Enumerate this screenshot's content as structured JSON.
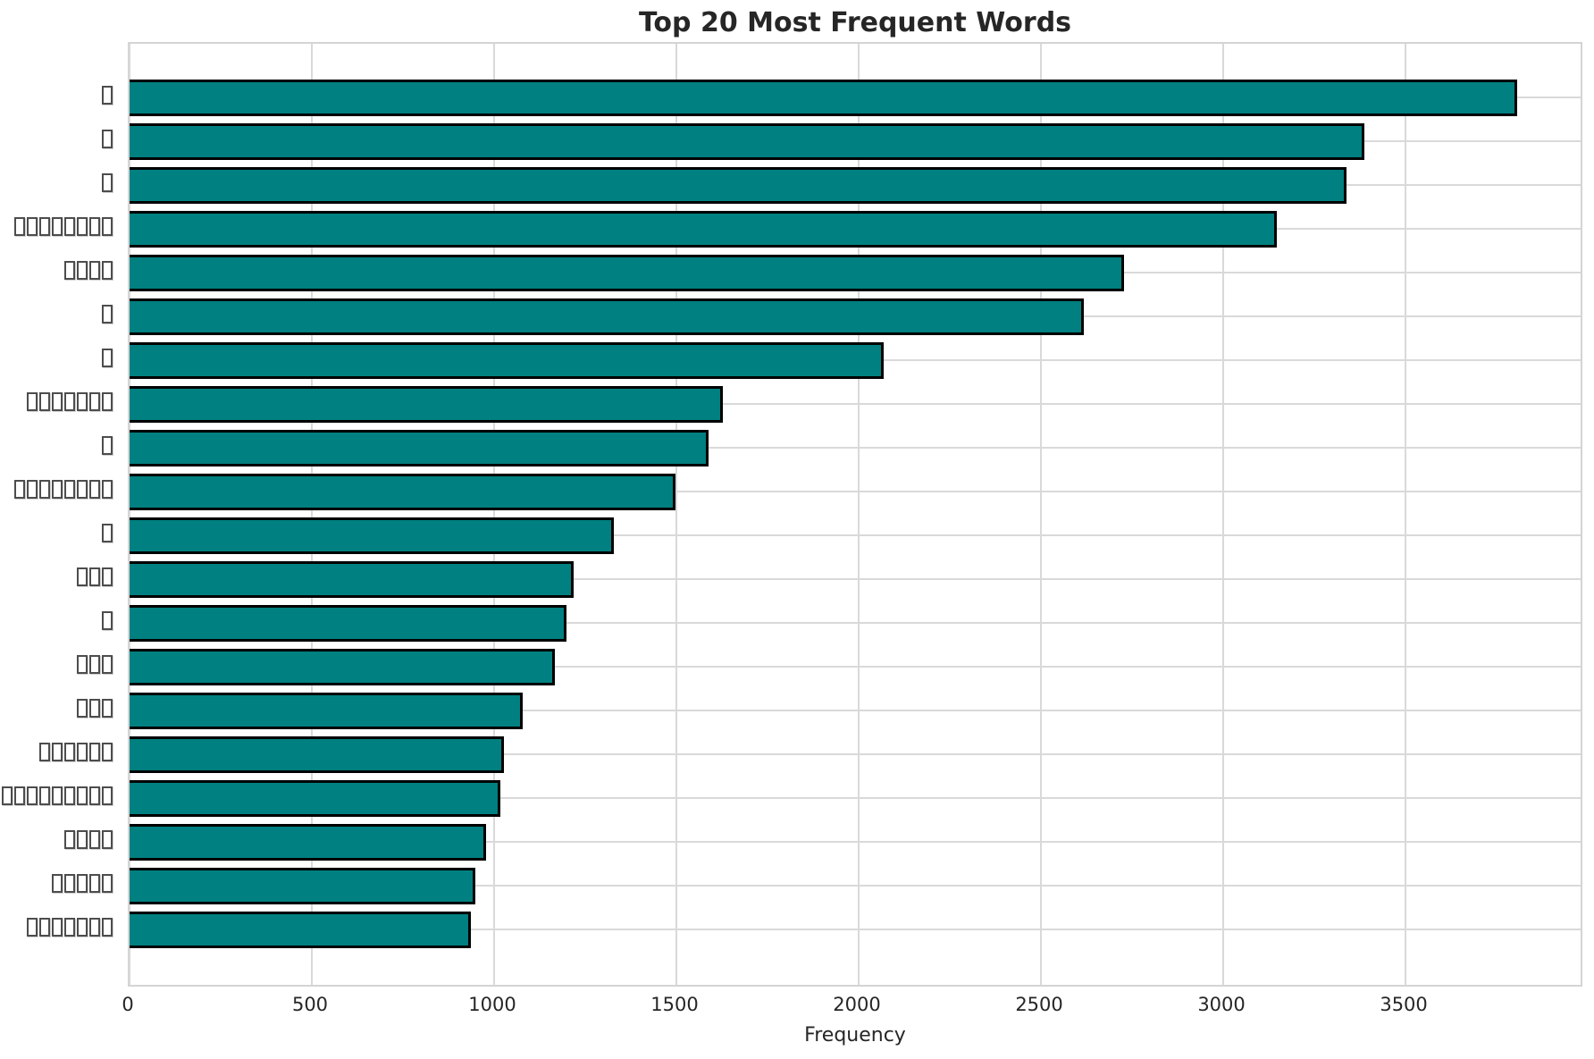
{
  "title": "Top 20 Most Frequent Words",
  "xlabel": "Frequency",
  "chart_data": {
    "type": "bar",
    "orientation": "horizontal",
    "title": "Top 20 Most Frequent Words",
    "xlabel": "Frequency",
    "ylabel": "",
    "categories": [
      "□",
      "□",
      "□",
      "□□□□□□□□",
      "□□□□",
      "□",
      "□",
      "□□□□□□□",
      "□",
      "□□□□□□□□",
      "□",
      "□□□",
      "□",
      "□□□",
      "□□□",
      "□□□□□□",
      "□□□□□□□□□",
      "□□□□",
      "□□□□□",
      "□□□□□□□"
    ],
    "label_box_counts": [
      1,
      1,
      1,
      8,
      4,
      1,
      1,
      7,
      1,
      8,
      1,
      3,
      1,
      3,
      3,
      6,
      9,
      4,
      5,
      7
    ],
    "values": [
      3800,
      3380,
      3330,
      3140,
      2720,
      2610,
      2060,
      1620,
      1580,
      1490,
      1320,
      1210,
      1190,
      1160,
      1070,
      1020,
      1010,
      970,
      940,
      930
    ],
    "xticks": [
      0,
      500,
      1000,
      1500,
      2000,
      2500,
      3000,
      3500
    ],
    "xlim": [
      0,
      3990
    ],
    "grid": true,
    "legend": false,
    "bar_color": "#008080",
    "bar_edge_color": "#000000",
    "note": "y-axis labels appear as missing-glyph tofu boxes in the source image"
  }
}
